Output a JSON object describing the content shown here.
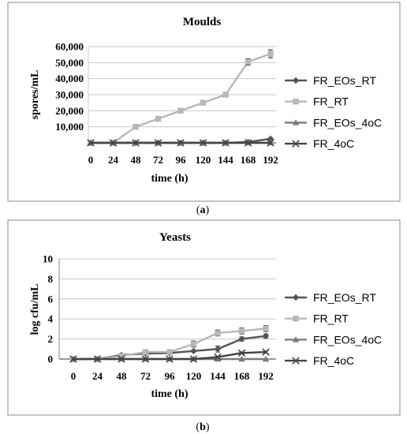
{
  "colors": {
    "FR_EOs_RT": "#555555",
    "FR_RT": "#b7b7b7",
    "FR_EOs_4oC": "#7a7a7a",
    "FR_4oC": "#444444",
    "grid": "#c8c8c8",
    "frame": "#888888"
  },
  "chart_data": [
    {
      "type": "line",
      "title": "Moulds",
      "xlabel": "time (h)",
      "ylabel": "spores/mL",
      "categories": [
        "0",
        "24",
        "48",
        "72",
        "96",
        "120",
        "144",
        "168",
        "192"
      ],
      "ylim": [
        0,
        60000
      ],
      "yticks": [
        "10,000",
        "20,000",
        "30,000",
        "40,000",
        "50,000",
        "60,000"
      ],
      "ytick_values": [
        10000,
        20000,
        30000,
        40000,
        50000,
        60000
      ],
      "grid": true,
      "legend_position": "right",
      "caption_label": "a",
      "series": [
        {
          "name": "FR_EOs_RT",
          "marker": "diamond",
          "values": [
            0,
            0,
            0,
            0,
            0,
            0,
            0,
            500,
            2500
          ],
          "errors": [
            0,
            0,
            0,
            0,
            0,
            0,
            0,
            200,
            500
          ]
        },
        {
          "name": "FR_RT",
          "marker": "square",
          "values": [
            0,
            0,
            10000,
            15000,
            20000,
            25000,
            30000,
            50500,
            55500
          ],
          "errors": [
            0,
            0,
            0,
            0,
            0,
            0,
            0,
            2000,
            2500
          ]
        },
        {
          "name": "FR_EOs_4oC",
          "marker": "triangle",
          "values": [
            0,
            0,
            0,
            0,
            0,
            0,
            0,
            0,
            0
          ],
          "errors": [
            0,
            0,
            0,
            0,
            0,
            0,
            0,
            0,
            0
          ]
        },
        {
          "name": "FR_4oC",
          "marker": "x",
          "values": [
            0,
            0,
            0,
            0,
            0,
            0,
            0,
            0,
            0
          ],
          "errors": [
            0,
            0,
            0,
            0,
            0,
            0,
            0,
            0,
            0
          ]
        }
      ]
    },
    {
      "type": "line",
      "title": "Yeasts",
      "xlabel": "time (h)",
      "ylabel": "log cfu/mL",
      "categories": [
        "0",
        "24",
        "48",
        "72",
        "96",
        "120",
        "144",
        "168",
        "192"
      ],
      "ylim": [
        0,
        10
      ],
      "yticks": [
        "0",
        "2",
        "4",
        "6",
        "8",
        "10"
      ],
      "ytick_values": [
        0,
        2,
        4,
        6,
        8,
        10
      ],
      "grid": true,
      "legend_position": "right",
      "caption_label": "b",
      "series": [
        {
          "name": "FR_EOs_RT",
          "marker": "diamond",
          "values": [
            0,
            0,
            0.4,
            0.55,
            0.6,
            0.8,
            1.0,
            2.0,
            2.3
          ],
          "errors": [
            0,
            0,
            0.1,
            0.1,
            0.1,
            0.1,
            0.3,
            0.2,
            0.2
          ]
        },
        {
          "name": "FR_RT",
          "marker": "square",
          "values": [
            0,
            0,
            0.3,
            0.7,
            0.7,
            1.5,
            2.6,
            2.8,
            3.05
          ],
          "errors": [
            0,
            0,
            0.1,
            0.2,
            0.2,
            0.3,
            0.3,
            0.3,
            0.3
          ]
        },
        {
          "name": "FR_EOs_4oC",
          "marker": "triangle",
          "values": [
            0,
            0,
            0,
            0,
            0,
            0,
            0,
            0,
            0
          ],
          "errors": [
            0,
            0,
            0,
            0,
            0,
            0,
            0,
            0,
            0
          ]
        },
        {
          "name": "FR_4oC",
          "marker": "x",
          "values": [
            0,
            0,
            0,
            0,
            0,
            0,
            0.2,
            0.6,
            0.7
          ],
          "errors": [
            0,
            0,
            0,
            0,
            0,
            0,
            0,
            0.1,
            0.1
          ]
        }
      ]
    }
  ]
}
